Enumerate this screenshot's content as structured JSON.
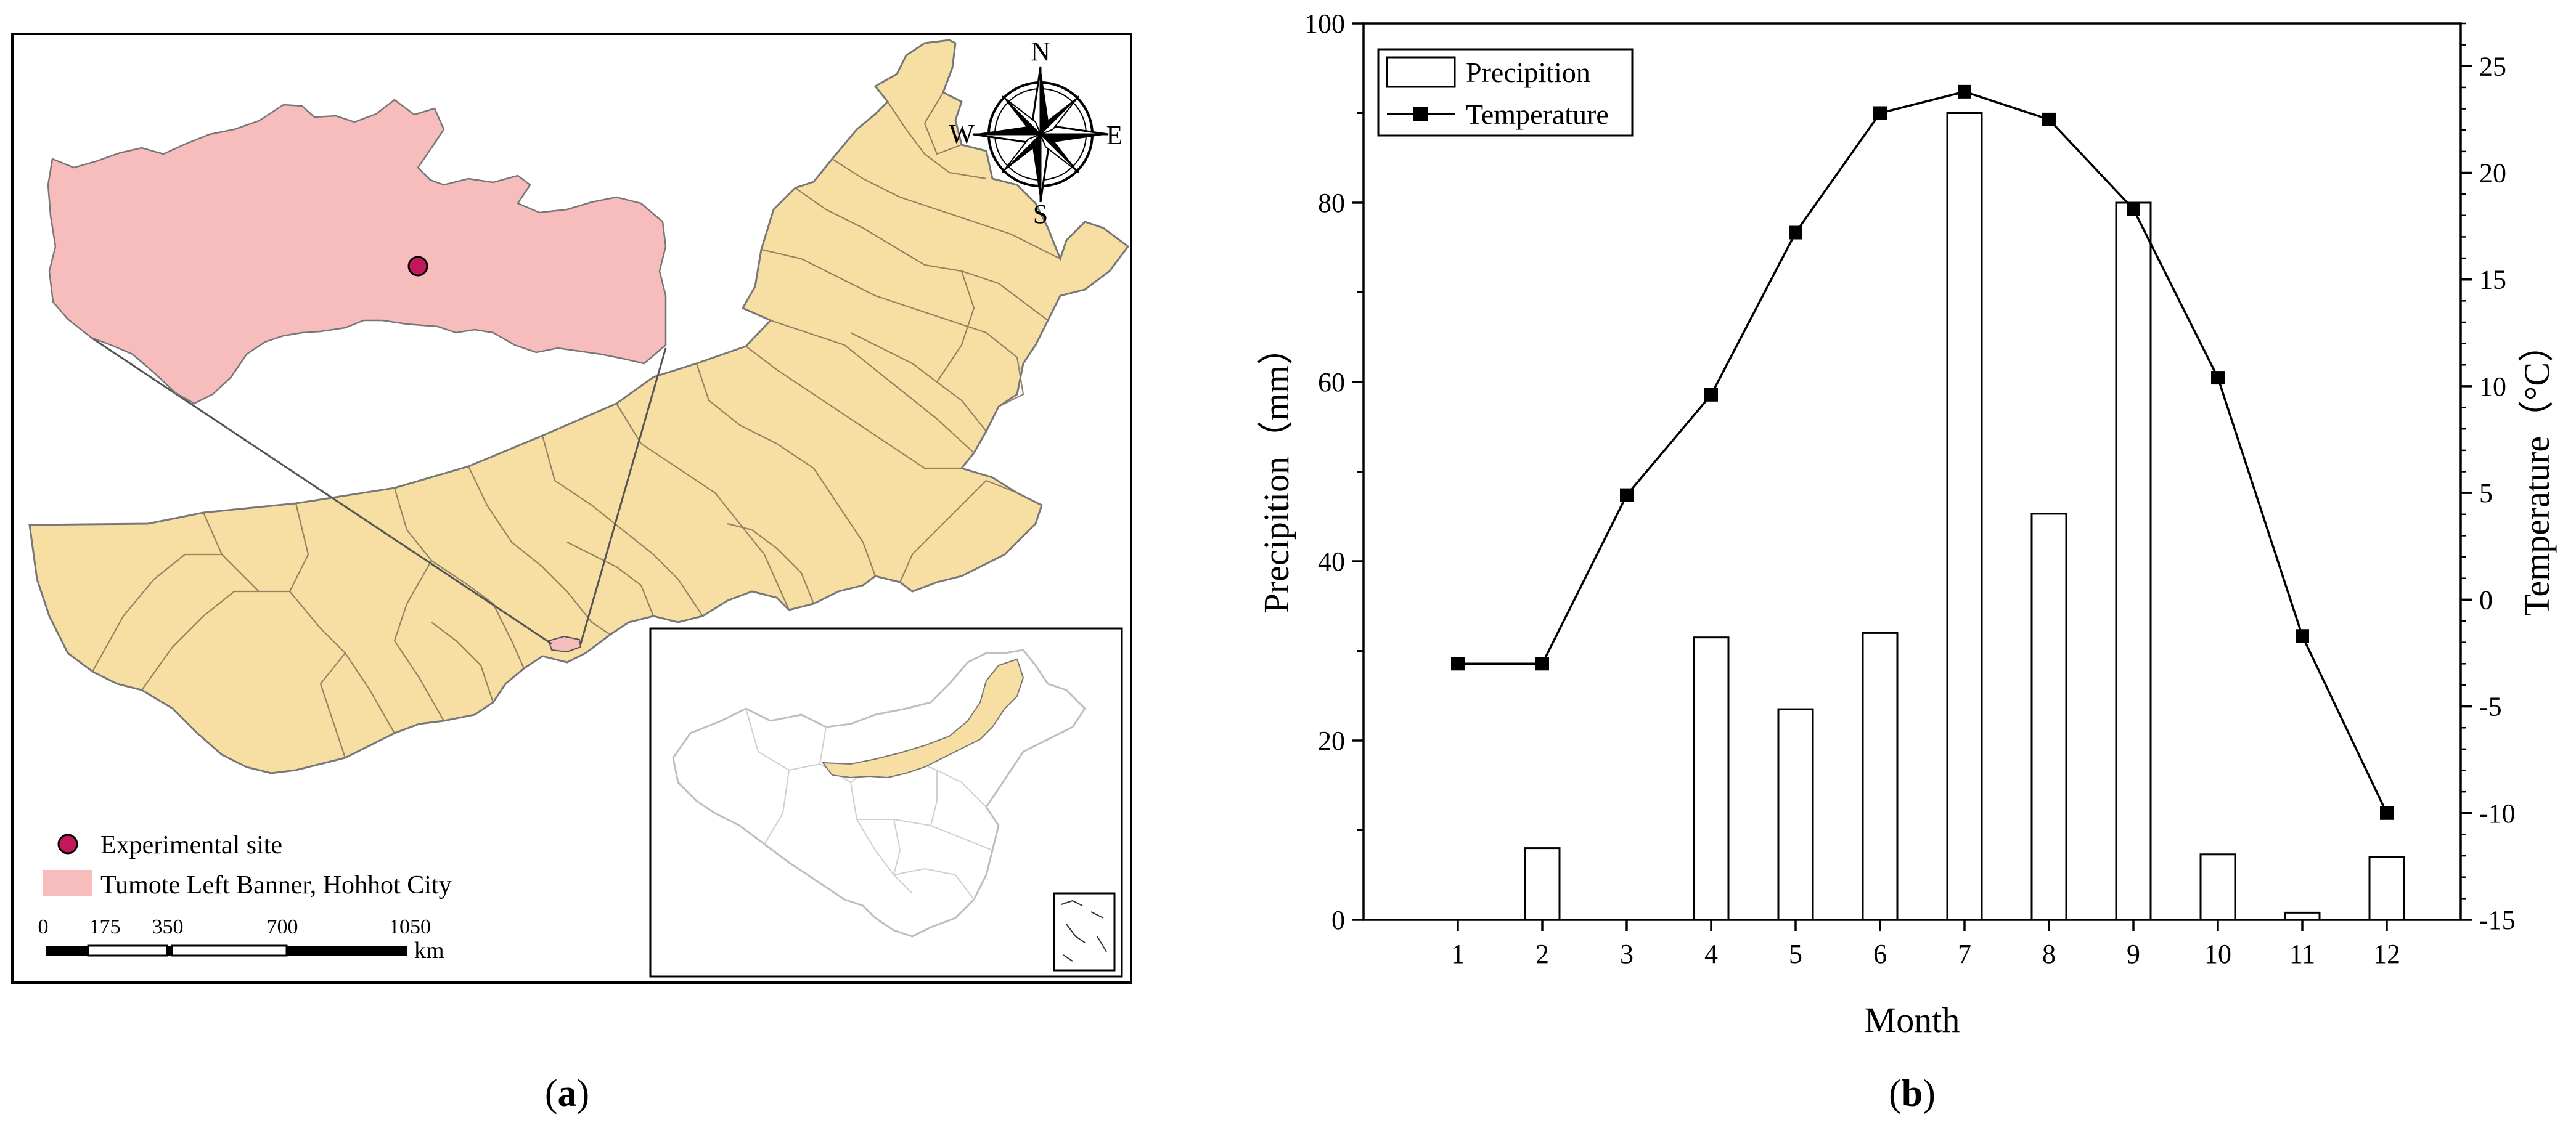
{
  "panel_a": {
    "label_open": "(",
    "label_letter": "a",
    "label_close": ")",
    "compass": {
      "n": "N",
      "s": "S",
      "e": "E",
      "w": "W"
    },
    "legend": {
      "site": "Experimental site",
      "banner": "Tumote Left Banner, Hohhot City",
      "site_color": "#c2185b",
      "banner_color": "#f7bcbc"
    },
    "scalebar": {
      "ticks": [
        "0",
        "175",
        "350",
        "700",
        "1050"
      ],
      "unit": "km"
    },
    "colors": {
      "province_fill": "#f7dfa3",
      "boundary": "#666666"
    }
  },
  "panel_b": {
    "label_open": "(",
    "label_letter": "b",
    "label_close": ")"
  },
  "chart_data": {
    "type": "bar",
    "categories": [
      "1",
      "2",
      "3",
      "4",
      "5",
      "6",
      "7",
      "8",
      "9",
      "10",
      "11",
      "12"
    ],
    "xlabel": "Month",
    "ylabel": "Precipition（mm）",
    "y2label": "Temperature（°C）",
    "ylim": [
      0,
      100
    ],
    "y2lim": [
      -15,
      27
    ],
    "yticks": [
      "0",
      "20",
      "40",
      "60",
      "80",
      "100"
    ],
    "y2ticks": [
      "-15",
      "-10",
      "-5",
      "0",
      "5",
      "10",
      "15",
      "20",
      "25"
    ],
    "legend_position": "top-left",
    "grid": false,
    "series": [
      {
        "name": "Precipition",
        "kind": "bar",
        "axis": "left",
        "values": [
          0,
          8,
          0,
          31.5,
          23.5,
          32,
          90,
          45.3,
          80,
          7.3,
          0.8,
          7
        ]
      },
      {
        "name": "Temperature",
        "kind": "line",
        "axis": "right",
        "values": [
          -3,
          -3,
          4.9,
          9.6,
          17.2,
          22.8,
          23.8,
          22.5,
          18.3,
          10.4,
          -1.7,
          -10
        ]
      }
    ]
  }
}
